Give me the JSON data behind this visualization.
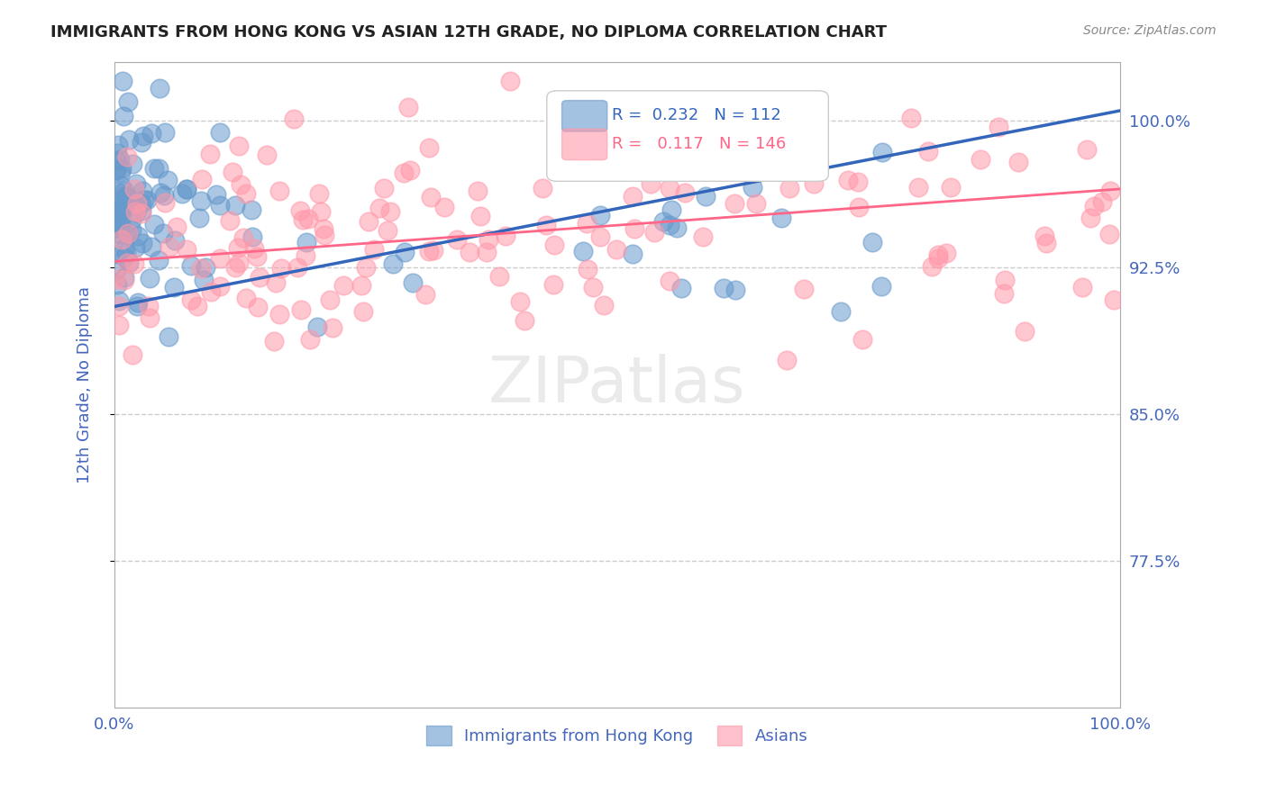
{
  "title": "IMMIGRANTS FROM HONG KONG VS ASIAN 12TH GRADE, NO DIPLOMA CORRELATION CHART",
  "source": "Source: ZipAtlas.com",
  "ylabel": "12th Grade, No Diploma",
  "xlabel": "",
  "watermark": "ZIPatlas",
  "blue_label": "Immigrants from Hong Kong",
  "pink_label": "Asians",
  "blue_R": 0.232,
  "blue_N": 112,
  "pink_R": 0.117,
  "pink_N": 146,
  "blue_color": "#6699CC",
  "pink_color": "#FF99AA",
  "blue_line_color": "#3366BB",
  "pink_line_color": "#FF6688",
  "xmin": 0.0,
  "xmax": 1.0,
  "ymin": 0.7,
  "ymax": 1.03,
  "yticks": [
    0.775,
    0.85,
    0.925,
    1.0
  ],
  "ytick_labels": [
    "77.5%",
    "85.0%",
    "92.5%",
    "100.0%"
  ],
  "xtick_labels": [
    "0.0%",
    "100.0%"
  ],
  "xticks": [
    0.0,
    1.0
  ],
  "blue_seed": 42,
  "pink_seed": 123,
  "title_fontsize": 13,
  "axis_label_color": "#4466BB",
  "tick_label_color": "#4466BB"
}
